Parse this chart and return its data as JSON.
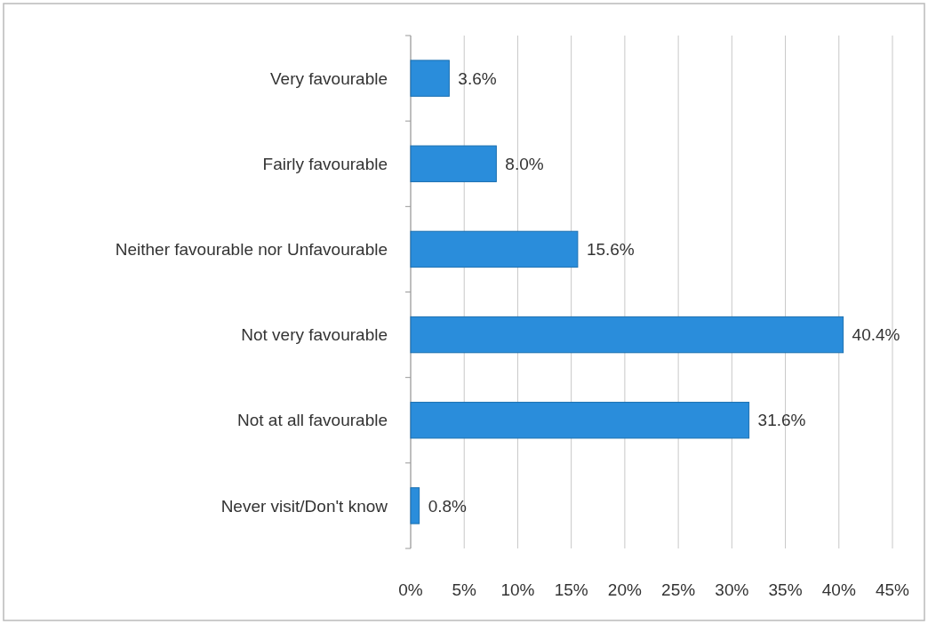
{
  "chart_data": {
    "type": "bar",
    "orientation": "horizontal",
    "categories": [
      "Very favourable",
      "Fairly favourable",
      "Neither favourable nor Unfavourable",
      "Not very favourable",
      "Not at all favourable",
      "Never visit/Don't know"
    ],
    "values": [
      3.6,
      8.0,
      15.6,
      40.4,
      31.6,
      0.8
    ],
    "value_labels": [
      "3.6%",
      "8.0%",
      "15.6%",
      "40.4%",
      "31.6%",
      "0.8%"
    ],
    "color": "#2a8ddb",
    "xlim": [
      0,
      45
    ],
    "xticks": [
      {
        "value": 0,
        "label": "0%"
      },
      {
        "value": 5,
        "label": "5%"
      },
      {
        "value": 10,
        "label": "10%"
      },
      {
        "value": 15,
        "label": "15%"
      },
      {
        "value": 20,
        "label": "20%"
      },
      {
        "value": 25,
        "label": "25%"
      },
      {
        "value": 30,
        "label": "30%"
      },
      {
        "value": 35,
        "label": "35%"
      },
      {
        "value": 40,
        "label": "40%"
      },
      {
        "value": 45,
        "label": "45%"
      }
    ],
    "grid": "x"
  }
}
